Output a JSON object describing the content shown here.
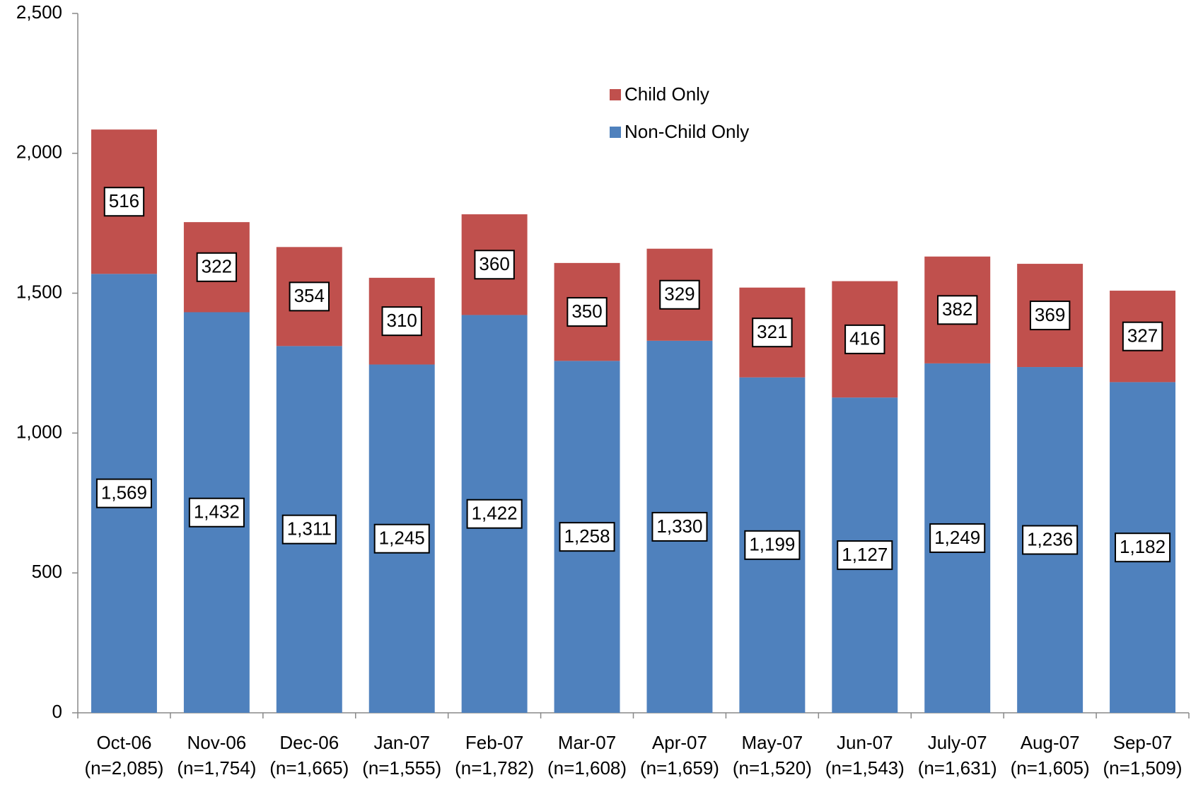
{
  "chart_data": {
    "type": "stacked_bar",
    "categories": [
      "Oct-06",
      "Nov-06",
      "Dec-06",
      "Jan-07",
      "Feb-07",
      "Mar-07",
      "Apr-07",
      "May-07",
      "Jun-07",
      "July-07",
      "Aug-07",
      "Sep-07"
    ],
    "category_notes": [
      "(n=2,085)",
      "(n=1,754)",
      "(n=1,665)",
      "(n=1,555)",
      "(n=1,782)",
      "(n=1,608)",
      "(n=1,659)",
      "(n=1,520)",
      "(n=1,543)",
      "(n=1,631)",
      "(n=1,605)",
      "(n=1,509)"
    ],
    "series": [
      {
        "name": "Non-Child Only",
        "color": "#4f81bd",
        "values": [
          1569,
          1432,
          1311,
          1245,
          1422,
          1258,
          1330,
          1199,
          1127,
          1249,
          1236,
          1182
        ],
        "value_labels": [
          "1,569",
          "1,432",
          "1,311",
          "1,245",
          "1,422",
          "1,258",
          "1,330",
          "1,199",
          "1,127",
          "1,249",
          "1,236",
          "1,182"
        ]
      },
      {
        "name": "Child Only",
        "color": "#c0504d",
        "values": [
          516,
          322,
          354,
          310,
          360,
          350,
          329,
          321,
          416,
          382,
          369,
          327
        ],
        "value_labels": [
          "516",
          "322",
          "354",
          "310",
          "360",
          "350",
          "329",
          "321",
          "416",
          "382",
          "369",
          "327"
        ]
      }
    ],
    "ylim": [
      0,
      2500
    ],
    "yticks": [
      0,
      500,
      {
        "value": 1000,
        "label": "1,000"
      },
      {
        "value": 1500,
        "label": "1,500"
      },
      {
        "value": 2000,
        "label": "2,000"
      },
      {
        "value": 2500,
        "label": "2,500"
      }
    ],
    "grid": false,
    "legend": "top-center"
  }
}
